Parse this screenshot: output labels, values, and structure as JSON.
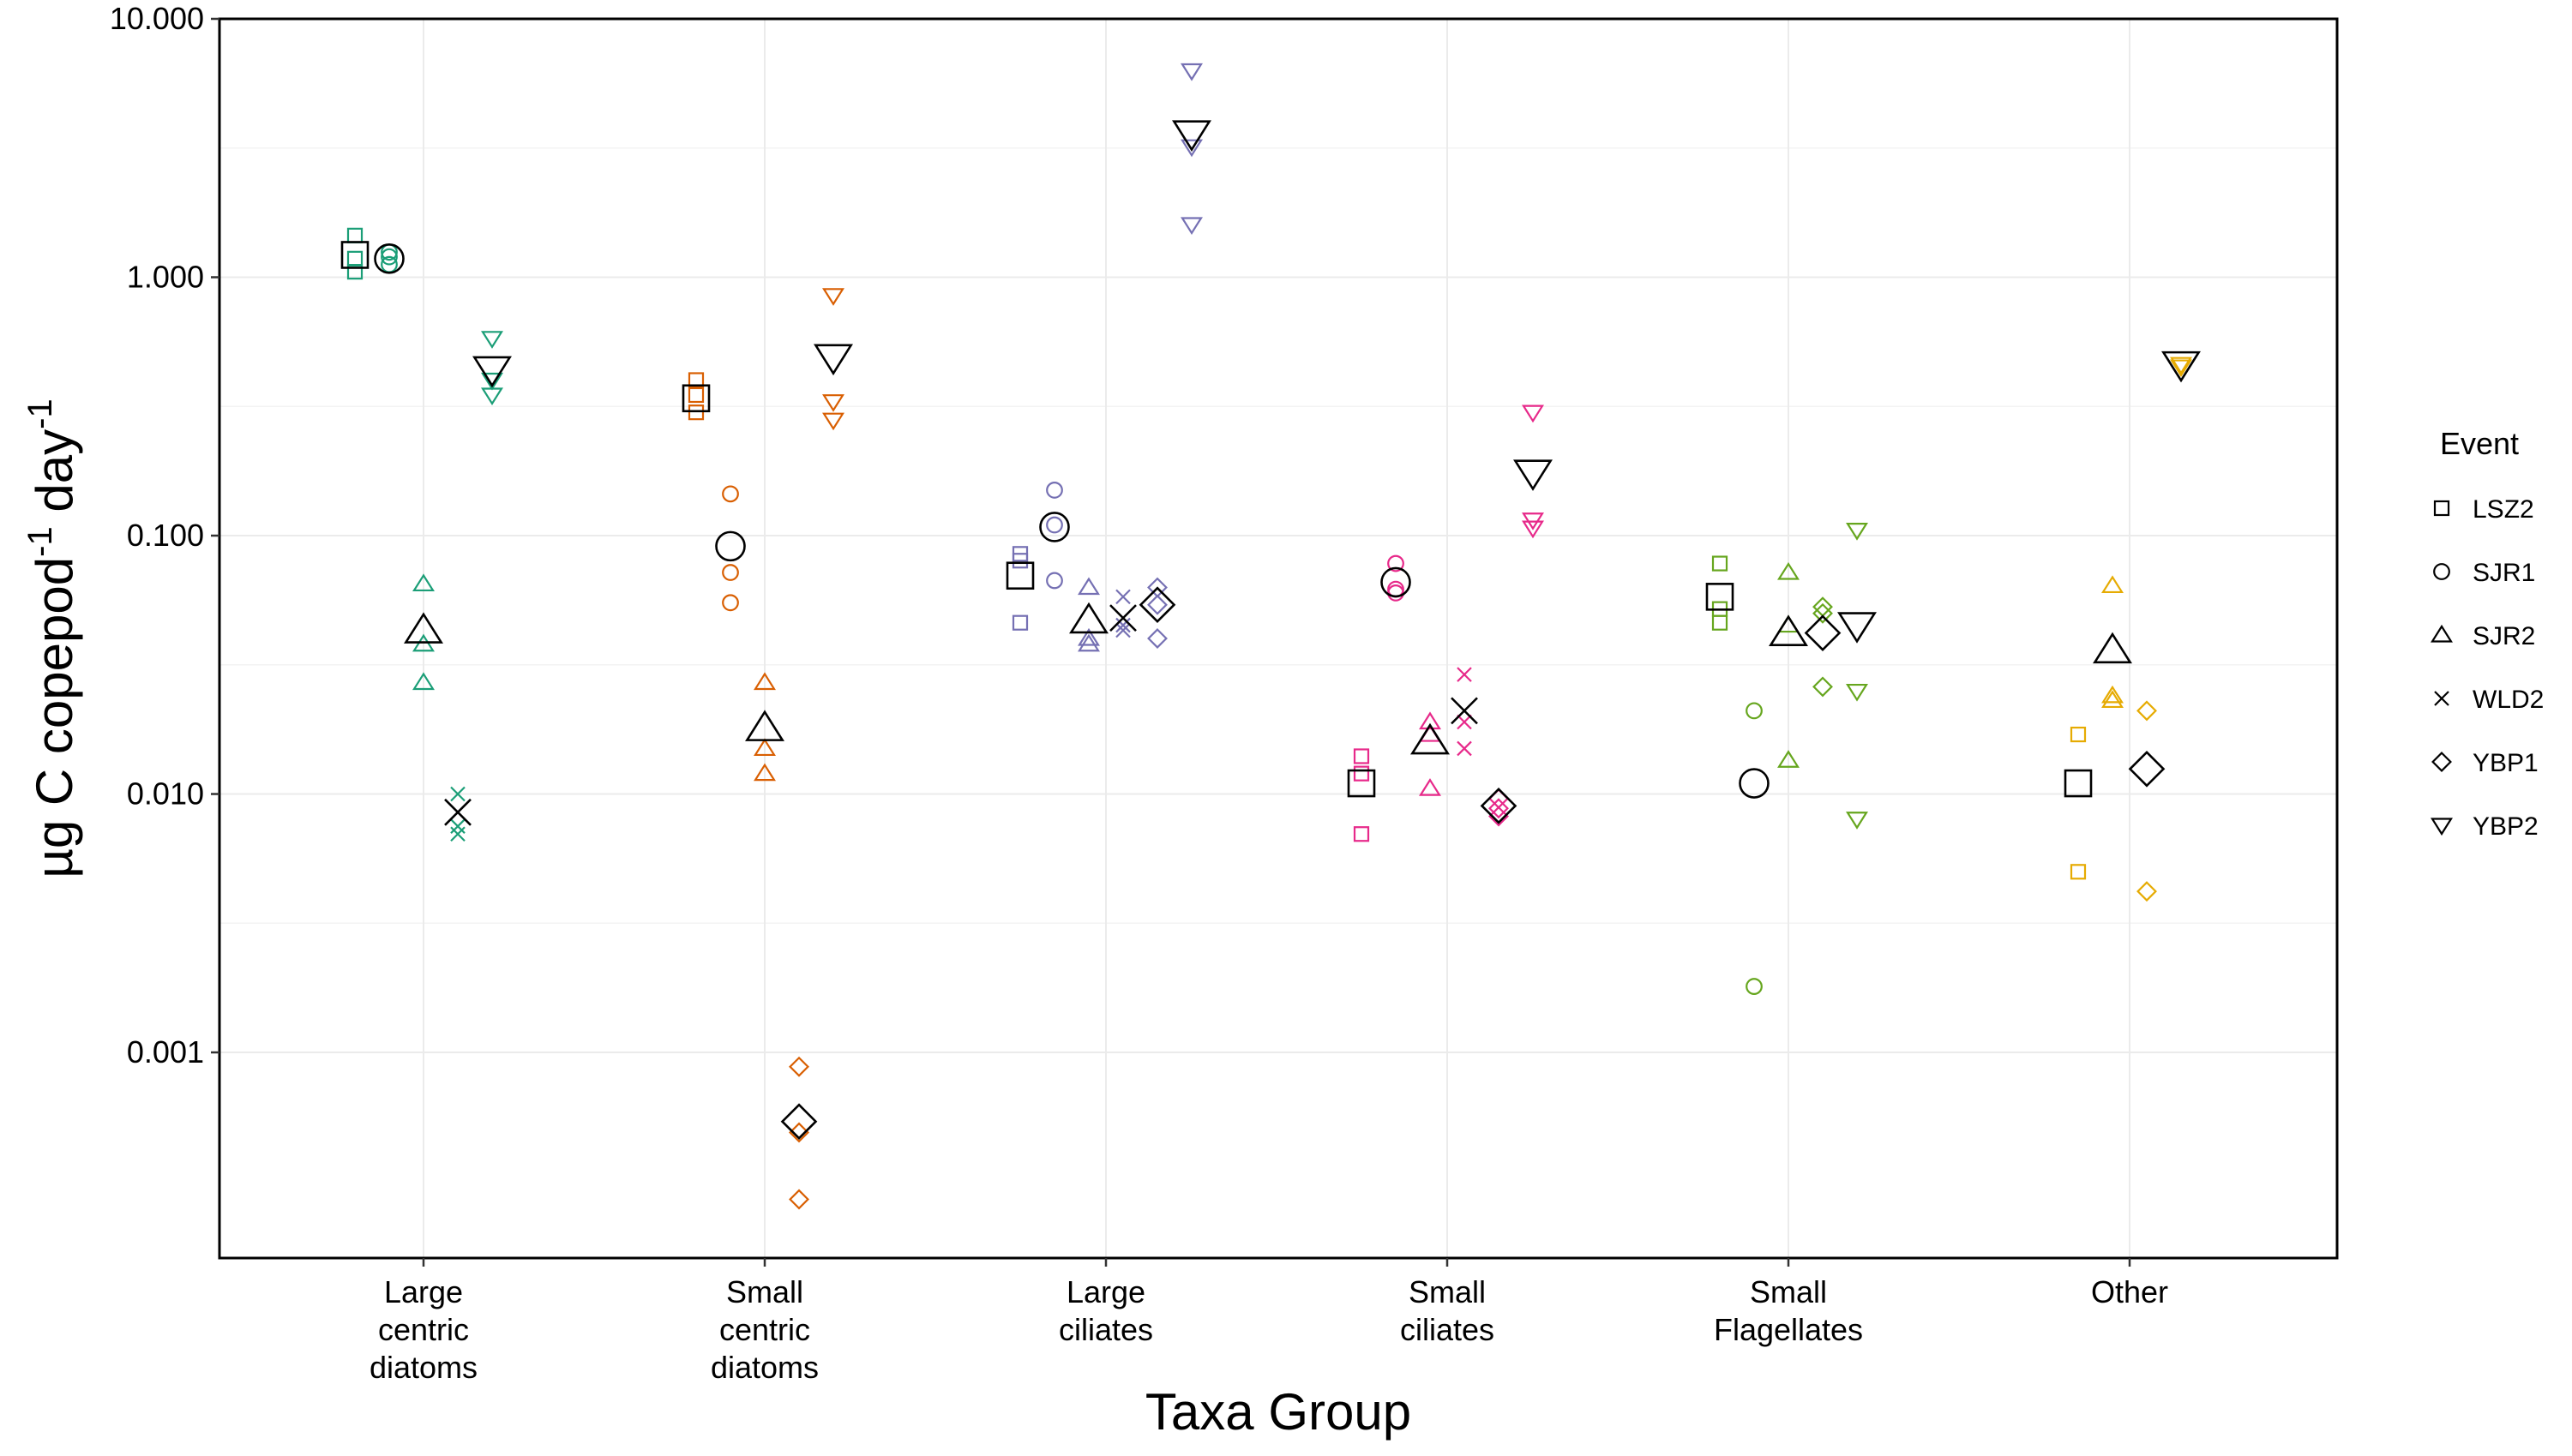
{
  "chart_data": {
    "type": "scatter",
    "ylabel": {
      "main": "µg C copepod",
      "sup1": "-1",
      "mid": " day",
      "sup2": "-1"
    },
    "xlabel": "Taxa Group",
    "yscale": "log",
    "ylim": [
      0.00016,
      10.0
    ],
    "yticks": [
      0.001,
      0.01,
      0.1,
      1.0,
      10.0
    ],
    "ytick_labels": [
      "0.001",
      "0.010",
      "0.100",
      "1.000",
      "10.000"
    ],
    "grid": true,
    "categories": [
      [
        "Large",
        "centric",
        "diatoms"
      ],
      [
        "Small",
        "centric",
        "diatoms"
      ],
      [
        "Large",
        "ciliates"
      ],
      [
        "Small",
        "ciliates"
      ],
      [
        "Small",
        "Flagellates"
      ],
      [
        "Other"
      ]
    ],
    "category_colors": [
      "#1b9e77",
      "#d95f02",
      "#7570b3",
      "#e7298a",
      "#66a61e",
      "#e6ab02"
    ],
    "mean_color": "#000000",
    "legend": {
      "title": "Event",
      "position": "right",
      "entries": [
        {
          "name": "LSZ2",
          "shape": "square"
        },
        {
          "name": "SJR1",
          "shape": "circle"
        },
        {
          "name": "SJR2",
          "shape": "triangle-up"
        },
        {
          "name": "WLD2",
          "shape": "x"
        },
        {
          "name": "YBP1",
          "shape": "diamond"
        },
        {
          "name": "YBP2",
          "shape": "triangle-down"
        }
      ]
    },
    "events": [
      "LSZ2",
      "SJR1",
      "SJR2",
      "WLD2",
      "YBP1",
      "YBP2"
    ],
    "groups": [
      {
        "category": 0,
        "points": {
          "LSZ2": {
            "replicates": [
              1.45,
              1.18,
              1.05
            ],
            "mean": 1.22
          },
          "SJR1": {
            "replicates": [
              1.25,
              1.12,
              1.2
            ],
            "mean": 1.18
          },
          "SJR2": {
            "replicates": [
              0.065,
              0.038,
              0.027
            ],
            "mean": 0.043
          },
          "WLD2": {
            "replicates": [
              0.01,
              0.0075,
              0.007
            ],
            "mean": 0.0085
          },
          "YBP2": {
            "replicates": [
              0.58,
              0.4,
              0.35
            ],
            "mean": 0.44
          }
        }
      },
      {
        "category": 1,
        "points": {
          "LSZ2": {
            "replicates": [
              0.4,
              0.35,
              0.3
            ],
            "mean": 0.34
          },
          "SJR1": {
            "replicates": [
              0.145,
              0.072,
              0.055
            ],
            "mean": 0.091
          },
          "SJR2": {
            "replicates": [
              0.027,
              0.015,
              0.012
            ],
            "mean": 0.018
          },
          "YBP1": {
            "replicates": [
              0.00088,
              0.00049,
              0.00027
            ],
            "mean": 0.00054
          },
          "YBP2": {
            "replicates": [
              0.85,
              0.33,
              0.28
            ],
            "mean": 0.49
          }
        }
      },
      {
        "category": 2,
        "points": {
          "LSZ2": {
            "replicates": [
              0.085,
              0.08,
              0.046
            ],
            "mean": 0.07
          },
          "SJR1": {
            "replicates": [
              0.15,
              0.11,
              0.067
            ],
            "mean": 0.108
          },
          "SJR2": {
            "replicates": [
              0.063,
              0.04,
              0.038
            ],
            "mean": 0.047
          },
          "WLD2": {
            "replicates": [
              0.058,
              0.045,
              0.043
            ],
            "mean": 0.048
          },
          "YBP1": {
            "replicates": [
              0.063,
              0.054,
              0.04
            ],
            "mean": 0.054
          },
          "YBP2": {
            "replicates": [
              6.3,
              3.2,
              1.6
            ],
            "mean": 3.6
          }
        }
      },
      {
        "category": 3,
        "points": {
          "LSZ2": {
            "replicates": [
              0.014,
              0.012,
              0.007
            ],
            "mean": 0.011
          },
          "SJR1": {
            "replicates": [
              0.078,
              0.062,
              0.06
            ],
            "mean": 0.066
          },
          "SJR2": {
            "replicates": [
              0.019,
              0.017,
              0.0105
            ],
            "mean": 0.016
          },
          "WLD2": {
            "replicates": [
              0.029,
              0.019,
              0.015
            ],
            "mean": 0.021
          },
          "YBP1": {
            "replicates": [
              0.0096,
              0.0088,
              0.0082
            ],
            "mean": 0.009
          },
          "YBP2": {
            "replicates": [
              0.3,
              0.115,
              0.107
            ],
            "mean": 0.175
          }
        }
      },
      {
        "category": 4,
        "points": {
          "LSZ2": {
            "replicates": [
              0.078,
              0.052,
              0.046
            ],
            "mean": 0.058
          },
          "SJR1": {
            "replicates": [
              0.021,
              0.0018
            ],
            "mean": 0.011
          },
          "SJR2": {
            "replicates": [
              0.072,
              0.045,
              0.0135
            ],
            "mean": 0.042
          },
          "YBP1": {
            "replicates": [
              0.053,
              0.05,
              0.026
            ],
            "mean": 0.042
          },
          "YBP2": {
            "replicates": [
              0.105,
              0.025,
              0.008
            ],
            "mean": 0.045
          }
        }
      },
      {
        "category": 5,
        "points": {
          "LSZ2": {
            "replicates": [
              0.017,
              0.005
            ],
            "mean": 0.011
          },
          "SJR2": {
            "replicates": [
              0.064,
              0.024,
              0.023
            ],
            "mean": 0.036
          },
          "YBP1": {
            "replicates": [
              0.021,
              0.0042
            ],
            "mean": 0.0125
          },
          "YBP2": {
            "replicates": [
              0.46,
              0.45
            ],
            "mean": 0.46
          }
        }
      }
    ]
  }
}
